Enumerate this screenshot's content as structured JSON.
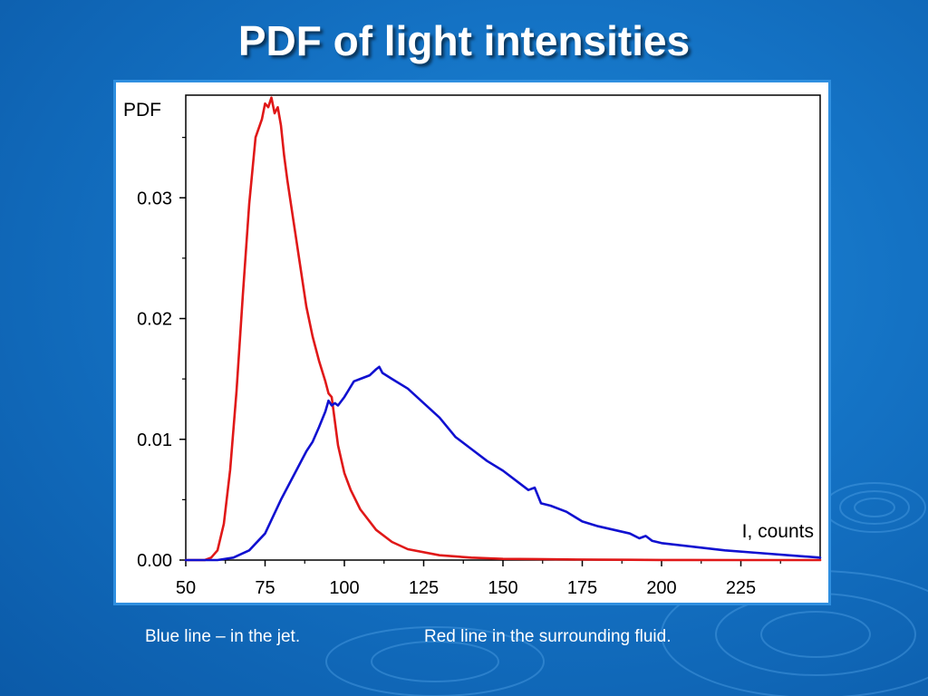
{
  "slide": {
    "title": "PDF of light intensities",
    "caption_blue": "Blue line – in the jet.",
    "caption_red": "Red line in the surrounding fluid."
  },
  "colors": {
    "background": "#1472c4",
    "jet_line": "#1010d0",
    "fluid_line": "#e01818",
    "frame_border": "#2f8fe0"
  },
  "chart_data": {
    "type": "line",
    "title": "",
    "xlabel": "I, counts",
    "ylabel": "PDF",
    "xlim": [
      50,
      250
    ],
    "ylim": [
      0,
      0.0385
    ],
    "x_ticks": [
      50,
      75,
      100,
      125,
      150,
      175,
      200,
      225
    ],
    "y_ticks": [
      0.0,
      0.01,
      0.02,
      0.03
    ],
    "y_tick_labels": [
      "0.00",
      "0.01",
      "0.02",
      "0.03"
    ],
    "grid": false,
    "series": [
      {
        "color": "#e01818",
        "x": [
          50,
          56,
          58,
          60,
          62,
          64,
          66,
          68,
          70,
          72,
          74,
          75,
          76,
          77,
          78,
          79,
          80,
          81,
          82,
          84,
          86,
          88,
          90,
          92,
          94,
          95,
          96,
          98,
          100,
          102,
          105,
          110,
          115,
          120,
          130,
          140,
          150,
          160,
          170,
          180,
          190,
          200,
          225,
          250
        ],
        "y": [
          0,
          0,
          0.0002,
          0.0008,
          0.003,
          0.0075,
          0.014,
          0.022,
          0.0295,
          0.035,
          0.0365,
          0.0378,
          0.0375,
          0.0383,
          0.037,
          0.0375,
          0.036,
          0.0335,
          0.0315,
          0.028,
          0.0245,
          0.021,
          0.0185,
          0.0165,
          0.0148,
          0.0138,
          0.0135,
          0.0095,
          0.0072,
          0.0058,
          0.0042,
          0.0025,
          0.0015,
          0.0009,
          0.0004,
          0.0002,
          0.0001,
          8e-05,
          5e-05,
          3e-05,
          2e-05,
          1e-05,
          0,
          0
        ]
      },
      {
        "color": "#1010d0",
        "x": [
          50,
          60,
          65,
          70,
          75,
          80,
          85,
          88,
          90,
          92,
          94,
          95,
          96,
          97,
          98,
          100,
          103,
          105,
          108,
          110,
          111,
          112,
          115,
          120,
          125,
          130,
          135,
          140,
          145,
          150,
          155,
          158,
          160,
          162,
          165,
          170,
          175,
          180,
          185,
          190,
          193,
          195,
          197,
          200,
          210,
          220,
          230,
          240,
          250
        ],
        "y": [
          0,
          0,
          0.0002,
          0.0008,
          0.0022,
          0.005,
          0.0075,
          0.009,
          0.0098,
          0.011,
          0.0123,
          0.0132,
          0.0128,
          0.013,
          0.0128,
          0.0135,
          0.0148,
          0.015,
          0.0153,
          0.0158,
          0.016,
          0.0155,
          0.015,
          0.0142,
          0.013,
          0.0118,
          0.0102,
          0.0092,
          0.0082,
          0.0074,
          0.0064,
          0.0058,
          0.006,
          0.0047,
          0.0045,
          0.004,
          0.0032,
          0.0028,
          0.0025,
          0.0022,
          0.0018,
          0.002,
          0.0016,
          0.0014,
          0.0011,
          0.0008,
          0.0006,
          0.0004,
          0.0002
        ]
      }
    ]
  }
}
